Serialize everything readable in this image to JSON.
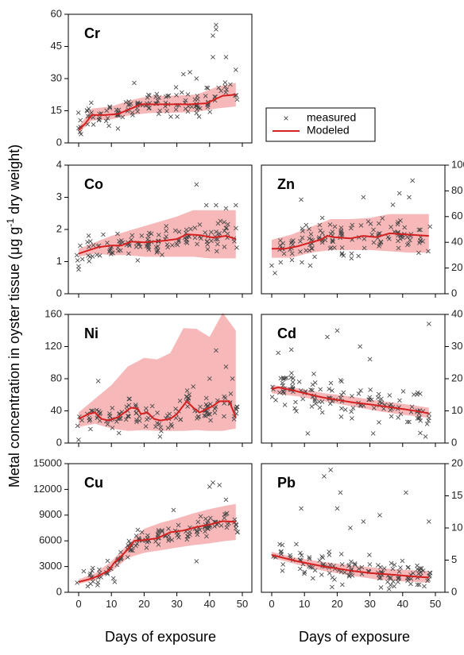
{
  "chart_data": {
    "type": "scatter",
    "xlabel": "Days of exposure",
    "ylabel_main": "Metal concentration in oyster tissue (",
    "ylabel_unit": "μg g",
    "ylabel_sup": "-1",
    "ylabel_end": " dry weight)",
    "legend": {
      "placement": "top-right",
      "measured": "measured",
      "modeled": "Modeled"
    },
    "colors": {
      "band": "#f6b8b8",
      "line": "#d42020",
      "marker": "#444444"
    },
    "xlim": [
      0,
      50
    ],
    "xticks": [
      "0",
      "10",
      "20",
      "30",
      "40",
      "50"
    ],
    "panels": [
      {
        "label": "Cr",
        "ylim": [
          0,
          60
        ],
        "yticks": [
          "0",
          "15",
          "30",
          "45",
          "60"
        ],
        "tick_side": "left",
        "modeled": [
          [
            0,
            6
          ],
          [
            2,
            9
          ],
          [
            4,
            13
          ],
          [
            8,
            13
          ],
          [
            12,
            13.5
          ],
          [
            16,
            16
          ],
          [
            19,
            18
          ],
          [
            26,
            18
          ],
          [
            34,
            18
          ],
          [
            39,
            18.5
          ],
          [
            44,
            22
          ],
          [
            48,
            22.5
          ]
        ],
        "band": [
          [
            0,
            4.5,
            7.5
          ],
          [
            4,
            10.5,
            16
          ],
          [
            10,
            11,
            17
          ],
          [
            16,
            13,
            20
          ],
          [
            22,
            14,
            22
          ],
          [
            28,
            14,
            22
          ],
          [
            36,
            14.5,
            22.5
          ],
          [
            42,
            16,
            26
          ],
          [
            48,
            17,
            28
          ]
        ],
        "scatter": {
          "n": 130,
          "seed": 11,
          "spread": 4.5,
          "outliers": [
            [
              41,
              50
            ],
            [
              42,
              55
            ],
            [
              42,
              53
            ],
            [
              41,
              40
            ],
            [
              45,
              40
            ],
            [
              48,
              34
            ],
            [
              34,
              33
            ],
            [
              32,
              32
            ],
            [
              17,
              28
            ],
            [
              36,
              30
            ]
          ]
        }
      },
      {
        "label": "Co",
        "ylim": [
          0,
          4
        ],
        "yticks": [
          "0",
          "1",
          "2",
          "3",
          "4"
        ],
        "tick_side": "left",
        "modeled": [
          [
            0,
            1.25
          ],
          [
            3,
            1.35
          ],
          [
            6,
            1.45
          ],
          [
            10,
            1.5
          ],
          [
            13,
            1.5
          ],
          [
            16,
            1.62
          ],
          [
            20,
            1.6
          ],
          [
            26,
            1.65
          ],
          [
            30,
            1.7
          ],
          [
            33,
            1.85
          ],
          [
            37,
            1.82
          ],
          [
            41,
            1.75
          ],
          [
            45,
            1.8
          ],
          [
            48,
            1.7
          ]
        ],
        "band": [
          [
            0,
            1.15,
            1.4
          ],
          [
            5,
            1.25,
            1.6
          ],
          [
            10,
            1.2,
            1.8
          ],
          [
            15,
            1.2,
            1.95
          ],
          [
            20,
            1.15,
            2.1
          ],
          [
            25,
            1.15,
            2.25
          ],
          [
            30,
            1.15,
            2.4
          ],
          [
            35,
            1.15,
            2.6
          ],
          [
            40,
            1.1,
            2.6
          ],
          [
            48,
            1.1,
            2.6
          ]
        ],
        "scatter": {
          "n": 130,
          "seed": 23,
          "spread": 0.33,
          "outliers": [
            [
              36,
              3.4
            ],
            [
              48,
              2.75
            ],
            [
              45,
              2.65
            ],
            [
              0,
              0.75
            ],
            [
              0,
              0.85
            ],
            [
              42,
              2.75
            ],
            [
              39,
              2.75
            ]
          ]
        }
      },
      {
        "label": "Zn",
        "ylim": [
          0,
          100
        ],
        "yticks": [
          "0",
          "20",
          "40",
          "60",
          "80",
          "100"
        ],
        "tick_side": "right",
        "modeled": [
          [
            0,
            35
          ],
          [
            4,
            35
          ],
          [
            8,
            37
          ],
          [
            12,
            40
          ],
          [
            15,
            42
          ],
          [
            17,
            45
          ],
          [
            19,
            44
          ],
          [
            24,
            43
          ],
          [
            28,
            45
          ],
          [
            32,
            44
          ],
          [
            36,
            47
          ],
          [
            42,
            46
          ],
          [
            48,
            45
          ]
        ],
        "band": [
          [
            0,
            28,
            42
          ],
          [
            6,
            28,
            46
          ],
          [
            12,
            32,
            52
          ],
          [
            18,
            34,
            58
          ],
          [
            24,
            34,
            58
          ],
          [
            30,
            34,
            59
          ],
          [
            36,
            33,
            62
          ],
          [
            42,
            32,
            62
          ],
          [
            48,
            32,
            62
          ]
        ],
        "scatter": {
          "n": 130,
          "seed": 37,
          "spread": 11,
          "outliers": [
            [
              43,
              88
            ],
            [
              39,
              78
            ],
            [
              42,
              75
            ],
            [
              28,
              75
            ],
            [
              9,
              73
            ],
            [
              1,
              16
            ],
            [
              0,
              22
            ],
            [
              37,
              69
            ]
          ]
        }
      },
      {
        "label": "Ni",
        "ylim": [
          0,
          160
        ],
        "yticks": [
          "0",
          "40",
          "80",
          "120",
          "160"
        ],
        "tick_side": "left",
        "modeled": [
          [
            0,
            30
          ],
          [
            3,
            36
          ],
          [
            5,
            38
          ],
          [
            7,
            30
          ],
          [
            9,
            28
          ],
          [
            12,
            32
          ],
          [
            14,
            38
          ],
          [
            16,
            44
          ],
          [
            18,
            43
          ],
          [
            19,
            36
          ],
          [
            21,
            38
          ],
          [
            23,
            30
          ],
          [
            25,
            28
          ],
          [
            28,
            30
          ],
          [
            30,
            36
          ],
          [
            33,
            52
          ],
          [
            35,
            44
          ],
          [
            37,
            38
          ],
          [
            41,
            46
          ],
          [
            43,
            52
          ],
          [
            46,
            52
          ],
          [
            48,
            32
          ]
        ],
        "band": [
          [
            0,
            20,
            38
          ],
          [
            5,
            24,
            55
          ],
          [
            10,
            18,
            72
          ],
          [
            15,
            15,
            95
          ],
          [
            20,
            16,
            106
          ],
          [
            24,
            15,
            104
          ],
          [
            28,
            15,
            112
          ],
          [
            32,
            15,
            143
          ],
          [
            36,
            16,
            142
          ],
          [
            40,
            15,
            132
          ],
          [
            44,
            15,
            162
          ],
          [
            48,
            18,
            140
          ]
        ],
        "scatter": {
          "n": 130,
          "seed": 53,
          "spread": 13,
          "outliers": [
            [
              42,
              115
            ],
            [
              45,
              95
            ],
            [
              47,
              80
            ],
            [
              0,
              4
            ],
            [
              6,
              77
            ],
            [
              35,
              70
            ],
            [
              40,
              80
            ],
            [
              1,
              28
            ]
          ]
        }
      },
      {
        "label": "Cd",
        "ylim": [
          0,
          40
        ],
        "yticks": [
          "0",
          "10",
          "20",
          "30",
          "40"
        ],
        "tick_side": "right",
        "modeled": [
          [
            0,
            16.8
          ],
          [
            2,
            17.3
          ],
          [
            6,
            16.5
          ],
          [
            10,
            15.5
          ],
          [
            15,
            14.3
          ],
          [
            20,
            13.4
          ],
          [
            25,
            12.6
          ],
          [
            30,
            12
          ],
          [
            35,
            11.3
          ],
          [
            40,
            10.6
          ],
          [
            45,
            9.8
          ],
          [
            48,
            9.2
          ]
        ],
        "band": [
          [
            0,
            15.5,
            18
          ],
          [
            8,
            14.5,
            17
          ],
          [
            16,
            13,
            15.5
          ],
          [
            24,
            11.5,
            14.5
          ],
          [
            32,
            10,
            13.2
          ],
          [
            40,
            8.8,
            12.2
          ],
          [
            48,
            7.8,
            11
          ]
        ],
        "scatter": {
          "n": 130,
          "seed": 67,
          "spread": 4.5,
          "outliers": [
            [
              48,
              37
            ],
            [
              20,
              35
            ],
            [
              17,
              33
            ],
            [
              27,
              30
            ],
            [
              6,
              29
            ],
            [
              11,
              3
            ],
            [
              31,
              3
            ],
            [
              47,
              2
            ],
            [
              30,
              26
            ],
            [
              2,
              28
            ]
          ]
        }
      },
      {
        "label": "Cu",
        "ylim": [
          0,
          15000
        ],
        "yticks": [
          "0",
          "3000",
          "6000",
          "9000",
          "12000",
          "15000"
        ],
        "tick_side": "left",
        "modeled": [
          [
            0,
            1200
          ],
          [
            3,
            1500
          ],
          [
            6,
            1900
          ],
          [
            9,
            2500
          ],
          [
            11,
            3500
          ],
          [
            13,
            4200
          ],
          [
            15,
            5000
          ],
          [
            17,
            6000
          ],
          [
            20,
            6100
          ],
          [
            24,
            6300
          ],
          [
            28,
            7000
          ],
          [
            32,
            7200
          ],
          [
            36,
            7600
          ],
          [
            40,
            7900
          ],
          [
            44,
            8300
          ],
          [
            48,
            8200
          ]
        ],
        "band": [
          [
            0,
            1000,
            1500
          ],
          [
            5,
            1400,
            2200
          ],
          [
            10,
            2400,
            3600
          ],
          [
            15,
            4000,
            5600
          ],
          [
            20,
            4600,
            7400
          ],
          [
            25,
            4900,
            8100
          ],
          [
            30,
            5200,
            8600
          ],
          [
            35,
            5500,
            9200
          ],
          [
            40,
            5700,
            9700
          ],
          [
            45,
            6000,
            10100
          ],
          [
            48,
            6100,
            10300
          ]
        ],
        "scatter": {
          "n": 140,
          "seed": 79,
          "spread": 900,
          "outliers": [
            [
              41,
              12800
            ],
            [
              43,
              12500
            ],
            [
              40,
              12300
            ],
            [
              45,
              10800
            ],
            [
              36,
              3600
            ],
            [
              11,
              1200
            ],
            [
              29,
              9600
            ]
          ]
        }
      },
      {
        "label": "Pb",
        "ylim": [
          0,
          20
        ],
        "yticks": [
          "0",
          "5",
          "10",
          "15",
          "20"
        ],
        "tick_side": "right",
        "modeled": [
          [
            0,
            5.8
          ],
          [
            4,
            5.3
          ],
          [
            8,
            4.8
          ],
          [
            12,
            4.4
          ],
          [
            16,
            4
          ],
          [
            20,
            3.7
          ],
          [
            25,
            3.3
          ],
          [
            30,
            3
          ],
          [
            35,
            2.8
          ],
          [
            40,
            2.6
          ],
          [
            45,
            2.4
          ],
          [
            48,
            2.3
          ]
        ],
        "band": [
          [
            0,
            5.4,
            6.3
          ],
          [
            8,
            4.3,
            5.3
          ],
          [
            16,
            3.3,
            4.7
          ],
          [
            24,
            2.6,
            4.2
          ],
          [
            32,
            2,
            3.8
          ],
          [
            40,
            1.7,
            3.5
          ],
          [
            48,
            1.5,
            3.3
          ]
        ],
        "scatter": {
          "n": 130,
          "seed": 97,
          "spread": 1.7,
          "outliers": [
            [
              18,
              19
            ],
            [
              16,
              18
            ],
            [
              21,
              15.5
            ],
            [
              41,
              15.5
            ],
            [
              33,
              12
            ],
            [
              9,
              13
            ],
            [
              20,
              13
            ],
            [
              48,
              11
            ],
            [
              28,
              11
            ],
            [
              24,
              10
            ]
          ]
        }
      }
    ]
  }
}
